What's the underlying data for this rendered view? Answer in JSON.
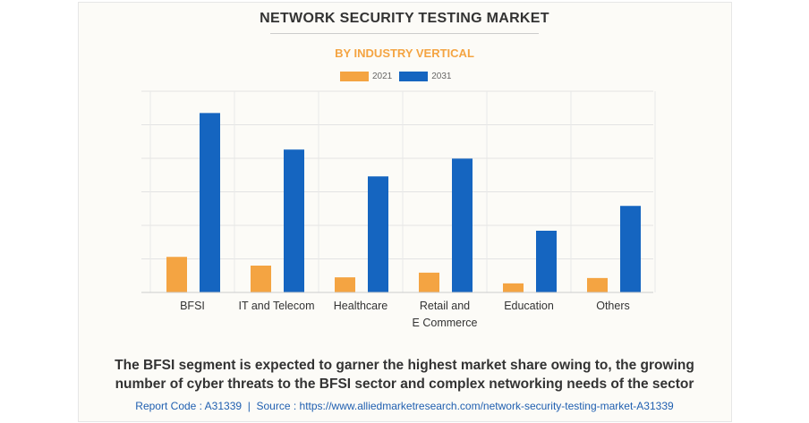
{
  "chart_data": {
    "type": "bar",
    "title": "NETWORK SECURITY TESTING MARKET",
    "subtitle": "BY INDUSTRY VERTICAL",
    "categories": [
      "BFSI",
      "IT and Telecom",
      "Healthcare",
      "Retail and\nE Commerce",
      "Education",
      "Others"
    ],
    "category_lines": [
      [
        "BFSI"
      ],
      [
        "IT and Telecom"
      ],
      [
        "Healthcare"
      ],
      [
        "Retail and",
        "E Commerce"
      ],
      [
        "Education"
      ],
      [
        "Others"
      ]
    ],
    "series": [
      {
        "name": "2021",
        "color": "#f4a442",
        "values": [
          1.06,
          0.8,
          0.45,
          0.59,
          0.27,
          0.43
        ]
      },
      {
        "name": "2031",
        "color": "#1565c0",
        "values": [
          5.35,
          4.26,
          3.46,
          3.99,
          1.84,
          2.58
        ]
      }
    ],
    "ylim": [
      0,
      6
    ],
    "grid": true,
    "legend": "top-center",
    "xlabel": "",
    "ylabel": ""
  },
  "caption": {
    "line1": "The BFSI segment is expected to garner the highest market share owing to, the growing",
    "line2": "number of cyber threats to the BFSI sector and complex networking needs of the sector"
  },
  "source": "Report Code : A31339  |  Source : https://www.alliedmarketresearch.com/network-security-testing-market-A31339"
}
